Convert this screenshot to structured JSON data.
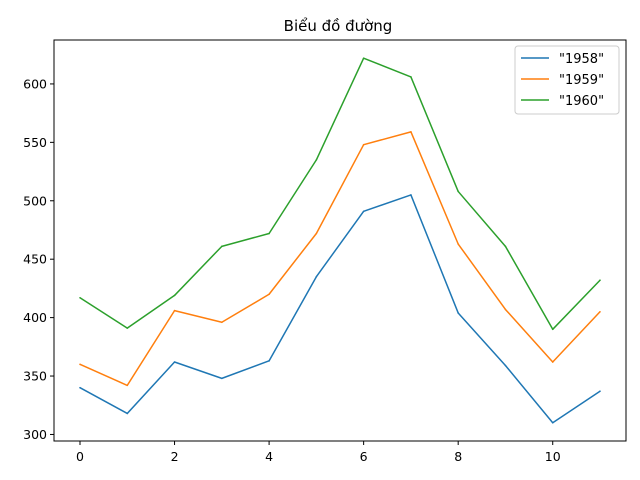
{
  "chart_data": {
    "type": "line",
    "title": "Biểu đồ đường",
    "xlabel": "",
    "ylabel": "",
    "x": [
      0,
      1,
      2,
      3,
      4,
      5,
      6,
      7,
      8,
      9,
      10,
      11
    ],
    "xlim": [
      -0.55,
      11.55
    ],
    "ylim": [
      294.4,
      637.6
    ],
    "x_ticks": [
      0,
      2,
      4,
      6,
      8,
      10
    ],
    "y_ticks": [
      300,
      350,
      400,
      450,
      500,
      550,
      600
    ],
    "x_tick_labels": [
      "0",
      "2",
      "4",
      "6",
      "8",
      "10"
    ],
    "y_tick_labels": [
      "300",
      "350",
      "400",
      "450",
      "500",
      "550",
      "600"
    ],
    "grid": false,
    "legend_position": "top-right",
    "series": [
      {
        "name": " \"1958\"",
        "color": "#1f77b4",
        "values": [
          340,
          318,
          362,
          348,
          363,
          435,
          491,
          505,
          404,
          359,
          310,
          337
        ]
      },
      {
        "name": " \"1959\"",
        "color": "#ff7f0e",
        "values": [
          360,
          342,
          406,
          396,
          420,
          472,
          548,
          559,
          463,
          407,
          362,
          405
        ]
      },
      {
        "name": " \"1960\"",
        "color": "#2ca02c",
        "values": [
          417,
          391,
          419,
          461,
          472,
          535,
          622,
          606,
          508,
          461,
          390,
          432
        ]
      }
    ]
  }
}
